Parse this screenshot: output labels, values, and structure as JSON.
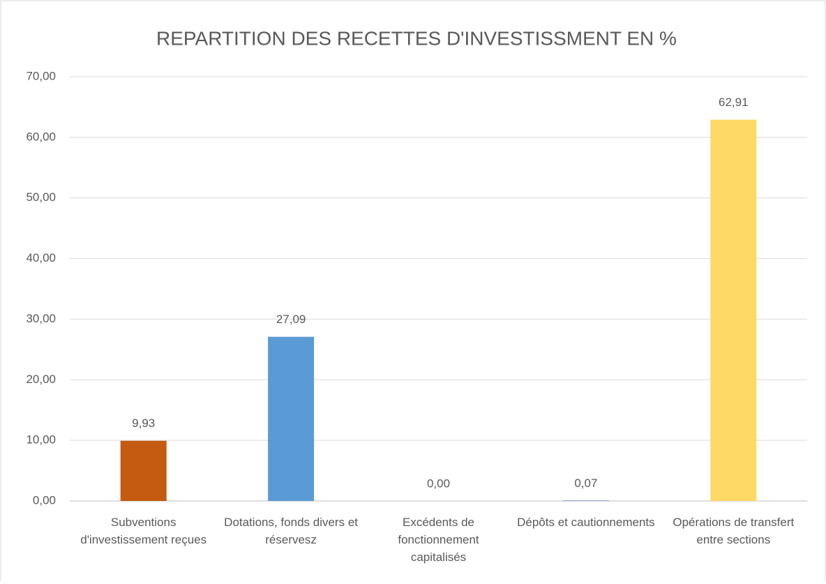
{
  "chart_data": {
    "type": "bar",
    "title": "REPARTITION DES RECETTES D'INVESTISSMENT EN %",
    "categories": [
      "Subventions d'investissement reçues",
      "Dotations, fonds divers et réservesz",
      "Excédents de fonctionnement capitalisés",
      "Dépôts et cautionnements",
      "Opérations de transfert entre sections"
    ],
    "values": [
      9.93,
      27.09,
      0.0,
      0.07,
      62.91
    ],
    "value_labels": [
      "9,93",
      "27,09",
      "0,00",
      "0,07",
      "62,91"
    ],
    "colors": [
      "#c55a11",
      "#5b9bd5",
      "#a5a5a5",
      "#4472c4",
      "#ffd966"
    ],
    "ylim": [
      0,
      70
    ],
    "yticks": [
      {
        "value": 0,
        "label": "0,00"
      },
      {
        "value": 10,
        "label": "10,00"
      },
      {
        "value": 20,
        "label": "20,00"
      },
      {
        "value": 30,
        "label": "30,00"
      },
      {
        "value": 40,
        "label": "40,00"
      },
      {
        "value": 50,
        "label": "50,00"
      },
      {
        "value": 60,
        "label": "60,00"
      },
      {
        "value": 70,
        "label": "70,00"
      }
    ],
    "grid": true
  }
}
